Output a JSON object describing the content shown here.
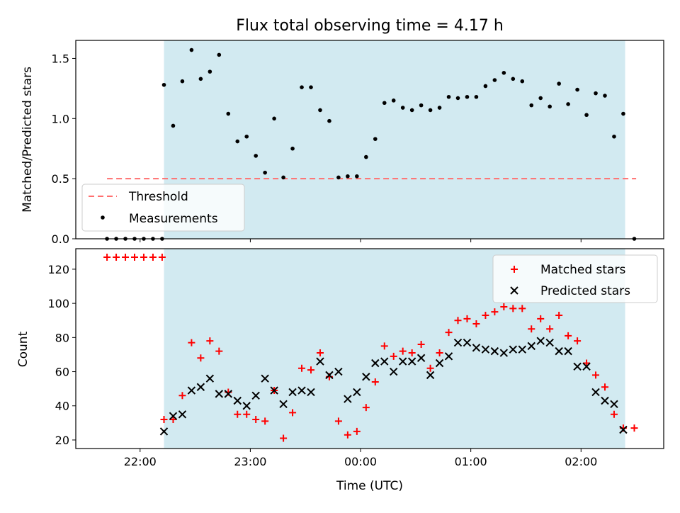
{
  "figure": {
    "title": "Flux total observing time = 4.17 h",
    "xlabel": "Time (UTC)"
  },
  "colors": {
    "shade": "#add8e6",
    "threshold": "#ff6f6f",
    "measurement": "#000000",
    "matched": "#ff0000",
    "predicted": "#000000"
  },
  "chart_data": [
    {
      "type": "scatter",
      "ylabel": "Matched/Predicted stars",
      "ylim": [
        0,
        1.65
      ],
      "xlim": [
        "21:25",
        "02:45"
      ],
      "x_ticks": [
        "22:00",
        "23:00",
        "00:00",
        "01:00",
        "02:00"
      ],
      "y_ticks": [
        "0.0",
        "0.5",
        "1.0",
        "1.5"
      ],
      "shaded_span": [
        "22:13",
        "02:24"
      ],
      "legend_position": "lower-left",
      "threshold": {
        "name": "Threshold",
        "value": 0.5,
        "x_range": [
          "21:42",
          "02:30"
        ],
        "style": "dashed"
      },
      "series": [
        {
          "name": "Measurements",
          "marker": "dot",
          "points": [
            [
              "21:42",
              0
            ],
            [
              "21:47",
              0
            ],
            [
              "21:52",
              0
            ],
            [
              "21:57",
              0
            ],
            [
              "22:02",
              0
            ],
            [
              "22:07",
              0
            ],
            [
              "22:12",
              0
            ],
            [
              "22:13",
              1.28
            ],
            [
              "22:18",
              0.94
            ],
            [
              "22:23",
              1.31
            ],
            [
              "22:28",
              1.57
            ],
            [
              "22:33",
              1.33
            ],
            [
              "22:38",
              1.39
            ],
            [
              "22:43",
              1.53
            ],
            [
              "22:48",
              1.04
            ],
            [
              "22:53",
              0.81
            ],
            [
              "22:58",
              0.85
            ],
            [
              "23:03",
              0.69
            ],
            [
              "23:08",
              0.55
            ],
            [
              "23:13",
              1.0
            ],
            [
              "23:18",
              0.51
            ],
            [
              "23:23",
              0.75
            ],
            [
              "23:28",
              1.26
            ],
            [
              "23:33",
              1.26
            ],
            [
              "23:38",
              1.07
            ],
            [
              "23:43",
              0.98
            ],
            [
              "23:48",
              0.51
            ],
            [
              "23:53",
              0.52
            ],
            [
              "23:58",
              0.52
            ],
            [
              "00:03",
              0.68
            ],
            [
              "00:08",
              0.83
            ],
            [
              "00:13",
              1.13
            ],
            [
              "00:18",
              1.15
            ],
            [
              "00:23",
              1.09
            ],
            [
              "00:28",
              1.07
            ],
            [
              "00:33",
              1.11
            ],
            [
              "00:38",
              1.07
            ],
            [
              "00:43",
              1.09
            ],
            [
              "00:48",
              1.18
            ],
            [
              "00:53",
              1.17
            ],
            [
              "00:58",
              1.18
            ],
            [
              "01:03",
              1.18
            ],
            [
              "01:08",
              1.27
            ],
            [
              "01:13",
              1.32
            ],
            [
              "01:18",
              1.38
            ],
            [
              "01:23",
              1.33
            ],
            [
              "01:28",
              1.31
            ],
            [
              "01:33",
              1.11
            ],
            [
              "01:38",
              1.17
            ],
            [
              "01:43",
              1.1
            ],
            [
              "01:48",
              1.29
            ],
            [
              "01:53",
              1.12
            ],
            [
              "01:58",
              1.24
            ],
            [
              "02:03",
              1.03
            ],
            [
              "02:08",
              1.21
            ],
            [
              "02:13",
              1.19
            ],
            [
              "02:18",
              0.85
            ],
            [
              "02:23",
              1.04
            ],
            [
              "02:29",
              0
            ]
          ]
        }
      ]
    },
    {
      "type": "scatter",
      "ylabel": "Count",
      "ylim": [
        15,
        132
      ],
      "xlim": [
        "21:25",
        "02:45"
      ],
      "x_ticks": [
        "22:00",
        "23:00",
        "00:00",
        "01:00",
        "02:00"
      ],
      "y_ticks": [
        "20",
        "40",
        "60",
        "80",
        "100",
        "120"
      ],
      "shaded_span": [
        "22:13",
        "02:24"
      ],
      "legend_position": "upper-right",
      "series": [
        {
          "name": "Matched stars",
          "marker": "plus",
          "points": [
            [
              "21:42",
              127
            ],
            [
              "21:47",
              127
            ],
            [
              "21:52",
              127
            ],
            [
              "21:57",
              127
            ],
            [
              "22:02",
              127
            ],
            [
              "22:07",
              127
            ],
            [
              "22:12",
              127
            ],
            [
              "22:13",
              32
            ],
            [
              "22:18",
              32
            ],
            [
              "22:23",
              46
            ],
            [
              "22:28",
              77
            ],
            [
              "22:33",
              68
            ],
            [
              "22:38",
              78
            ],
            [
              "22:43",
              72
            ],
            [
              "22:48",
              48
            ],
            [
              "22:53",
              35
            ],
            [
              "22:58",
              35
            ],
            [
              "23:03",
              32
            ],
            [
              "23:08",
              31
            ],
            [
              "23:13",
              49
            ],
            [
              "23:18",
              21
            ],
            [
              "23:23",
              36
            ],
            [
              "23:28",
              62
            ],
            [
              "23:33",
              61
            ],
            [
              "23:38",
              71
            ],
            [
              "23:43",
              57
            ],
            [
              "23:48",
              31
            ],
            [
              "23:53",
              23
            ],
            [
              "23:58",
              25
            ],
            [
              "00:03",
              39
            ],
            [
              "00:08",
              54
            ],
            [
              "00:13",
              75
            ],
            [
              "00:18",
              69
            ],
            [
              "00:23",
              72
            ],
            [
              "00:28",
              71
            ],
            [
              "00:33",
              76
            ],
            [
              "00:38",
              62
            ],
            [
              "00:43",
              71
            ],
            [
              "00:48",
              83
            ],
            [
              "00:53",
              90
            ],
            [
              "00:58",
              91
            ],
            [
              "01:03",
              88
            ],
            [
              "01:08",
              93
            ],
            [
              "01:13",
              95
            ],
            [
              "01:18",
              98
            ],
            [
              "01:23",
              97
            ],
            [
              "01:28",
              97
            ],
            [
              "01:33",
              85
            ],
            [
              "01:38",
              91
            ],
            [
              "01:43",
              85
            ],
            [
              "01:48",
              93
            ],
            [
              "01:53",
              81
            ],
            [
              "01:58",
              78
            ],
            [
              "02:03",
              65
            ],
            [
              "02:08",
              58
            ],
            [
              "02:13",
              51
            ],
            [
              "02:18",
              35
            ],
            [
              "02:23",
              27
            ],
            [
              "02:29",
              27
            ]
          ]
        },
        {
          "name": "Predicted stars",
          "marker": "x",
          "points": [
            [
              "22:13",
              25
            ],
            [
              "22:18",
              34
            ],
            [
              "22:23",
              35
            ],
            [
              "22:28",
              49
            ],
            [
              "22:33",
              51
            ],
            [
              "22:38",
              56
            ],
            [
              "22:43",
              47
            ],
            [
              "22:48",
              47
            ],
            [
              "22:53",
              43
            ],
            [
              "22:58",
              40
            ],
            [
              "23:03",
              46
            ],
            [
              "23:08",
              56
            ],
            [
              "23:13",
              49
            ],
            [
              "23:18",
              41
            ],
            [
              "23:23",
              48
            ],
            [
              "23:28",
              49
            ],
            [
              "23:33",
              48
            ],
            [
              "23:38",
              66
            ],
            [
              "23:43",
              58
            ],
            [
              "23:48",
              60
            ],
            [
              "23:53",
              44
            ],
            [
              "23:58",
              48
            ],
            [
              "00:03",
              57
            ],
            [
              "00:08",
              65
            ],
            [
              "00:13",
              66
            ],
            [
              "00:18",
              60
            ],
            [
              "00:23",
              66
            ],
            [
              "00:28",
              66
            ],
            [
              "00:33",
              68
            ],
            [
              "00:38",
              58
            ],
            [
              "00:43",
              65
            ],
            [
              "00:48",
              69
            ],
            [
              "00:53",
              77
            ],
            [
              "00:58",
              77
            ],
            [
              "01:03",
              74
            ],
            [
              "01:08",
              73
            ],
            [
              "01:13",
              72
            ],
            [
              "01:18",
              71
            ],
            [
              "01:23",
              73
            ],
            [
              "01:28",
              73
            ],
            [
              "01:33",
              75
            ],
            [
              "01:38",
              78
            ],
            [
              "01:43",
              77
            ],
            [
              "01:48",
              72
            ],
            [
              "01:53",
              72
            ],
            [
              "01:58",
              63
            ],
            [
              "02:03",
              63
            ],
            [
              "02:08",
              48
            ],
            [
              "02:13",
              43
            ],
            [
              "02:18",
              41
            ],
            [
              "02:23",
              26
            ]
          ]
        }
      ]
    }
  ]
}
